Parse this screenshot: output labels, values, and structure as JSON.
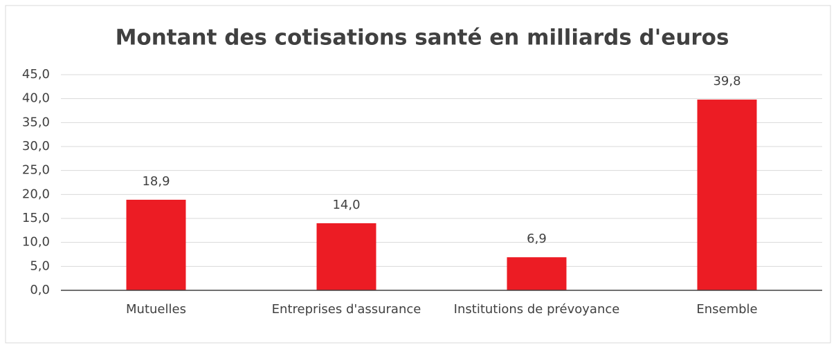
{
  "chart_data": {
    "type": "bar",
    "title": "Montant des cotisations santé en milliards d'euros",
    "categories": [
      "Mutuelles",
      "Entreprises d'assurance",
      "Institutions de prévoyance",
      "Ensemble"
    ],
    "values": [
      18.9,
      14.0,
      6.9,
      39.8
    ],
    "value_labels": [
      "18,9",
      "14,0",
      "6,9",
      "39,8"
    ],
    "color": "#ec1c24",
    "ylim": [
      0,
      45
    ],
    "yticks": [
      {
        "value": 0,
        "label": "0,0"
      },
      {
        "value": 5,
        "label": "5,0"
      },
      {
        "value": 10,
        "label": "10,0"
      },
      {
        "value": 15,
        "label": "15,0"
      },
      {
        "value": 20,
        "label": "20,0"
      },
      {
        "value": 25,
        "label": "25,0"
      },
      {
        "value": 30,
        "label": "30,0"
      },
      {
        "value": 35,
        "label": "35,0"
      },
      {
        "value": 40,
        "label": "40,0"
      },
      {
        "value": 45,
        "label": "45,0"
      }
    ],
    "grid": true
  }
}
